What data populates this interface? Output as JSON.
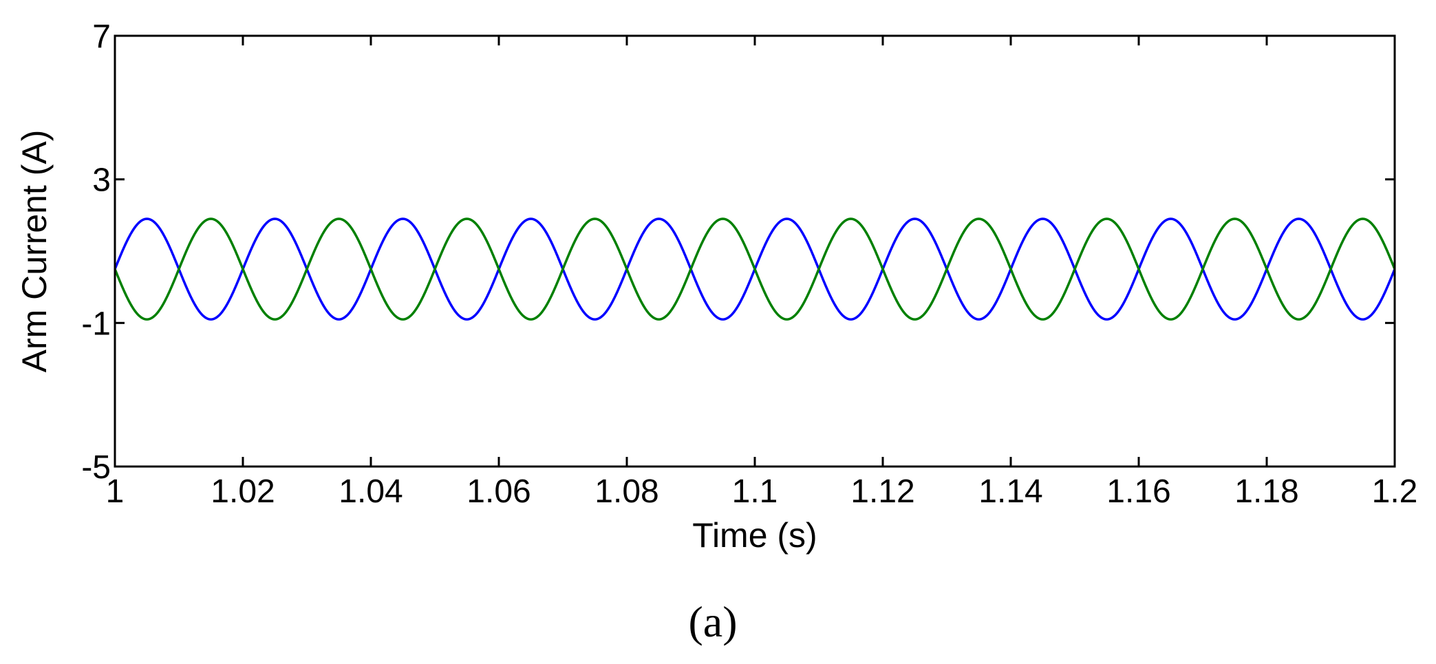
{
  "chart_data": {
    "type": "line",
    "xlabel": "Time (s)",
    "ylabel": "Arm Current (A)",
    "xlim": [
      1,
      1.2
    ],
    "ylim": [
      -5,
      7
    ],
    "xticks": [
      1,
      1.02,
      1.04,
      1.06,
      1.08,
      1.1,
      1.12,
      1.14,
      1.16,
      1.18,
      1.2
    ],
    "xtick_labels": [
      "1",
      "1.02",
      "1.04",
      "1.06",
      "1.08",
      "1.1",
      "1.12",
      "1.14",
      "1.16",
      "1.18",
      "1.2"
    ],
    "yticks": [
      -5,
      -1,
      3,
      7
    ],
    "ytick_labels": [
      "-5",
      "-1",
      "3",
      "7"
    ],
    "grid": false,
    "series": [
      {
        "color": "#0000ff",
        "waveform": "sine",
        "offset": 0.5,
        "amplitude": 1.4,
        "frequency_hz": 50,
        "phase_deg": 0,
        "x": [
          1.0,
          1.005,
          1.01,
          1.015,
          1.02,
          1.025,
          1.03,
          1.035,
          1.04,
          1.045,
          1.05,
          1.055,
          1.06,
          1.065,
          1.07,
          1.075,
          1.08,
          1.085,
          1.09,
          1.095,
          1.1,
          1.105,
          1.11,
          1.115,
          1.12,
          1.125,
          1.13,
          1.135,
          1.14,
          1.145,
          1.15,
          1.155,
          1.16,
          1.165,
          1.17,
          1.175,
          1.18,
          1.185,
          1.19,
          1.195,
          1.2
        ],
        "y": [
          0.5,
          1.9,
          0.5,
          -0.9,
          0.5,
          1.9,
          0.5,
          -0.9,
          0.5,
          1.9,
          0.5,
          -0.9,
          0.5,
          1.9,
          0.5,
          -0.9,
          0.5,
          1.9,
          0.5,
          -0.9,
          0.5,
          1.9,
          0.5,
          -0.9,
          0.5,
          1.9,
          0.5,
          -0.9,
          0.5,
          1.9,
          0.5,
          -0.9,
          0.5,
          1.9,
          0.5,
          -0.9,
          0.5,
          1.9,
          0.5,
          -0.9,
          0.5
        ]
      },
      {
        "color": "#008000",
        "waveform": "sine",
        "offset": 0.5,
        "amplitude": 1.4,
        "frequency_hz": 50,
        "phase_deg": 180,
        "x": [
          1.0,
          1.005,
          1.01,
          1.015,
          1.02,
          1.025,
          1.03,
          1.035,
          1.04,
          1.045,
          1.05,
          1.055,
          1.06,
          1.065,
          1.07,
          1.075,
          1.08,
          1.085,
          1.09,
          1.095,
          1.1,
          1.105,
          1.11,
          1.115,
          1.12,
          1.125,
          1.13,
          1.135,
          1.14,
          1.145,
          1.15,
          1.155,
          1.16,
          1.165,
          1.17,
          1.175,
          1.18,
          1.185,
          1.19,
          1.195,
          1.2
        ],
        "y": [
          0.5,
          -0.9,
          0.5,
          1.9,
          0.5,
          -0.9,
          0.5,
          1.9,
          0.5,
          -0.9,
          0.5,
          1.9,
          0.5,
          -0.9,
          0.5,
          1.9,
          0.5,
          -0.9,
          0.5,
          1.9,
          0.5,
          -0.9,
          0.5,
          1.9,
          0.5,
          -0.9,
          0.5,
          1.9,
          0.5,
          -0.9,
          0.5,
          1.9,
          0.5,
          -0.9,
          0.5,
          1.9,
          0.5,
          -0.9,
          0.5,
          1.9,
          0.5
        ]
      }
    ]
  },
  "caption": "(a)"
}
